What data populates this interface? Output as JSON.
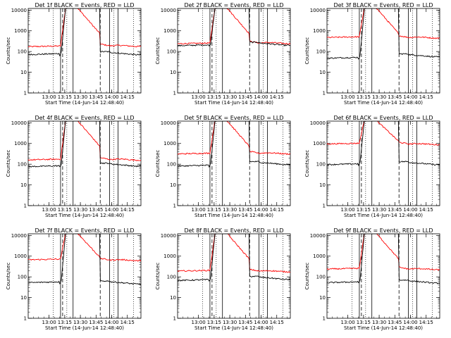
{
  "chart_data": {
    "type": "line",
    "panels_layout": "3x3 grid",
    "shared": {
      "xlabel": "Start Time (14-Jun-14 12:48:40)",
      "ylabel": "Counts/sec",
      "x_ticks": [
        "13:00",
        "13:15",
        "13:30",
        "13:45",
        "14:00",
        "14:15"
      ],
      "x_tick_minutes": [
        0,
        15,
        30,
        45,
        60,
        75
      ],
      "xlim_minutes_after_13_00": [
        -20,
        88
      ],
      "y_ticks": [
        "1",
        "10",
        "100",
        "1000",
        "10000"
      ],
      "ylim": [
        1,
        12000
      ],
      "y_scale": "log",
      "series_colors": {
        "Events": "#000000",
        "LLD": "#ff0000"
      },
      "vlines_minutes_after_13_00": {
        "dotted": [
          4,
          17,
          62,
          81
        ],
        "solid": [
          11,
          23,
          58,
          66
        ],
        "dashed": [
          13,
          49
        ]
      }
    },
    "panels": [
      {
        "title": "Det 1f BLACK = Events, RED = LLD",
        "events_base": 75,
        "events_after": 70,
        "lld_base": 180,
        "lld_after": 190
      },
      {
        "title": "Det 2f BLACK = Events, RED = LLD",
        "events_base": 200,
        "events_after": 200,
        "lld_base": 250,
        "lld_after": 260
      },
      {
        "title": "Det 3f BLACK = Events, RED = LLD",
        "events_base": 50,
        "events_after": 55,
        "lld_base": 500,
        "lld_after": 480
      },
      {
        "title": "Det 4f BLACK = Events, RED = LLD",
        "events_base": 80,
        "events_after": 80,
        "lld_base": 170,
        "lld_after": 170
      },
      {
        "title": "Det 5f BLACK = Events, RED = LLD",
        "events_base": 85,
        "events_after": 95,
        "lld_base": 330,
        "lld_after": 340
      },
      {
        "title": "Det 6f BLACK = Events, RED = LLD",
        "events_base": 100,
        "events_after": 95,
        "lld_base": 1000,
        "lld_after": 950
      },
      {
        "title": "Det 7f BLACK = Events, RED = LLD",
        "events_base": 55,
        "events_after": 45,
        "lld_base": 700,
        "lld_after": 650
      },
      {
        "title": "Det 8f BLACK = Events, RED = LLD",
        "events_base": 70,
        "events_after": 75,
        "lld_base": 200,
        "lld_after": 190
      },
      {
        "title": "Det 9f BLACK = Events, RED = LLD",
        "events_base": 55,
        "events_after": 50,
        "lld_base": 250,
        "lld_after": 240
      }
    ]
  }
}
